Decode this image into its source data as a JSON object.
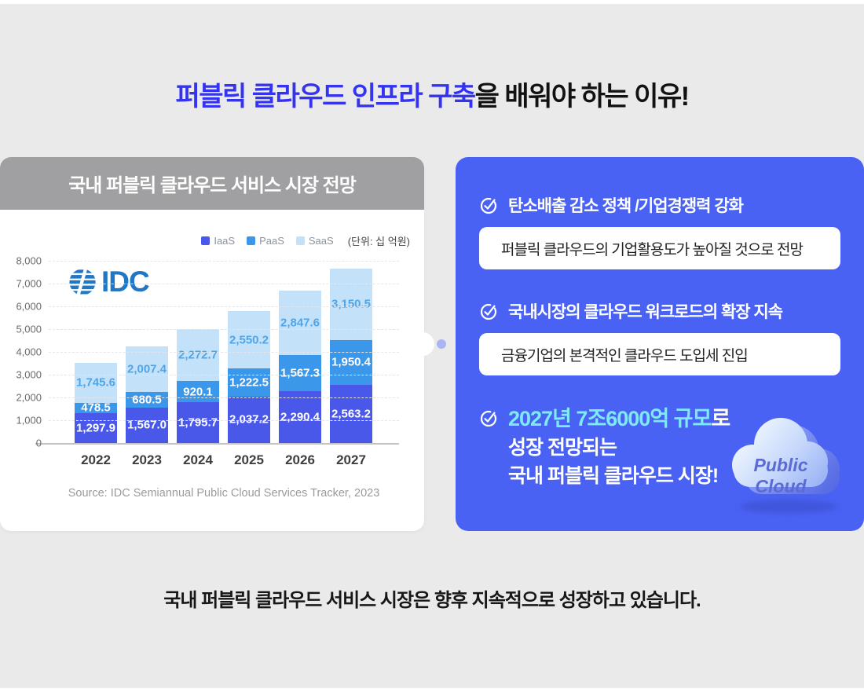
{
  "page": {
    "title_highlight": "퍼블릭 클라우드 인프라 구축",
    "title_rest": "을 배워야 하는 이유!",
    "footer": "국내 퍼블릭 클라우드 서비스 시장은 향후 지속적으로 성장하고 있습니다."
  },
  "chart_card": {
    "header": "국내 퍼블릭 클라우드 서비스 시장 전망",
    "unit_label": "(단위: 십 억원)",
    "logo_text": "IDC",
    "source": "Source: IDC Semiannual Public Cloud Services Tracker, 2023"
  },
  "chart_data": {
    "type": "bar",
    "stacked": true,
    "title": "국내 퍼블릭 클라우드 서비스 시장 전망",
    "unit": "십 억원",
    "categories": [
      "2022",
      "2023",
      "2024",
      "2025",
      "2026",
      "2027"
    ],
    "series": [
      {
        "name": "IaaS",
        "color": "#4958e9",
        "label_color": "#ffffff",
        "values": [
          1297.9,
          1567.0,
          1795.7,
          2037.2,
          2290.4,
          2563.2
        ],
        "labels": [
          "1,297.9",
          "1,567.0",
          "1,795.7",
          "2,037.2",
          "2,290.4",
          "2,563.2"
        ]
      },
      {
        "name": "PaaS",
        "color": "#3b97ea",
        "label_color": "#ffffff",
        "values": [
          478.5,
          680.5,
          920.1,
          1222.5,
          1567.3,
          1950.4
        ],
        "labels": [
          "478.5",
          "680.5",
          "920.1",
          "1,222.5",
          "1,567.3",
          "1,950.4"
        ]
      },
      {
        "name": "SaaS",
        "color": "#c3e2f9",
        "label_color": "#4fa5e8",
        "values": [
          1745.6,
          2007.4,
          2272.7,
          2550.2,
          2847.6,
          3150.5
        ],
        "labels": [
          "1,745.6",
          "2,007.4",
          "2,272.7",
          "2,550.2",
          "2,847.6",
          "3,150.5"
        ]
      }
    ],
    "ylim": [
      0,
      8000
    ],
    "ytick_step": 1000,
    "yticks": [
      "8,000",
      "7,000",
      "6,000",
      "5,000",
      "4,000",
      "3,000",
      "2,000",
      "1,000",
      "0"
    ],
    "grid": "dashed-horizontal",
    "legend_position": "top-right"
  },
  "info_panel": {
    "items": [
      {
        "heading": "탄소배출 감소 정책 /기업경쟁력 강화",
        "box": "퍼블릭 클라우드의 기업활용도가 높아질 것으로 전망"
      },
      {
        "heading": "국내시장의 클라우드 워크로드의 확장 지속",
        "box": "금융기업의 본격적인 클라우드 도입세 진입"
      }
    ],
    "highlight": {
      "line1_highlight": "2027년 7조6000억 규모",
      "line1_rest": "로",
      "line2": "성장 전망되는",
      "line3": "국내 퍼블릭 클라우드 시장!"
    },
    "cloud_badge": {
      "line1": "Public",
      "line2": "Cloud"
    }
  },
  "colors": {
    "page_bg": "#eaeaeb",
    "panel_blue": "#4a62f3",
    "title_blue": "#3333f0",
    "cyan_highlight": "#7deaf5",
    "header_gray": "#a0a0a2",
    "iaas": "#4958e9",
    "paas": "#3b97ea",
    "saas": "#c3e2f9",
    "idc_blue": "#2277c4"
  }
}
